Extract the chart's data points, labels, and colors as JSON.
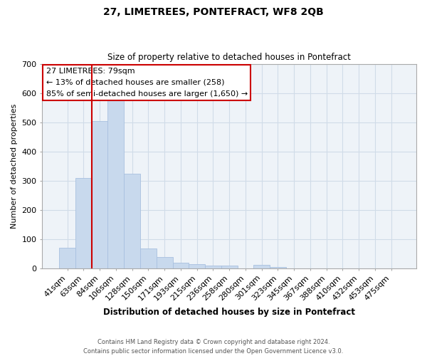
{
  "title": "27, LIMETREES, PONTEFRACT, WF8 2QB",
  "subtitle": "Size of property relative to detached houses in Pontefract",
  "xlabel": "Distribution of detached houses by size in Pontefract",
  "ylabel": "Number of detached properties",
  "bar_labels": [
    "41sqm",
    "63sqm",
    "84sqm",
    "106sqm",
    "128sqm",
    "150sqm",
    "171sqm",
    "193sqm",
    "215sqm",
    "236sqm",
    "258sqm",
    "280sqm",
    "301sqm",
    "323sqm",
    "345sqm",
    "367sqm",
    "388sqm",
    "410sqm",
    "432sqm",
    "453sqm",
    "475sqm"
  ],
  "bar_values": [
    72,
    310,
    505,
    575,
    325,
    68,
    40,
    20,
    14,
    10,
    10,
    0,
    12,
    6,
    0,
    0,
    0,
    0,
    0,
    0,
    0
  ],
  "bar_color": "#c8d9ed",
  "bar_edge_color": "#a8c0e0",
  "vline_color": "#cc0000",
  "ylim": [
    0,
    700
  ],
  "yticks": [
    0,
    100,
    200,
    300,
    400,
    500,
    600,
    700
  ],
  "annotation_title": "27 LIMETREES: 79sqm",
  "annotation_line1": "← 13% of detached houses are smaller (258)",
  "annotation_line2": "85% of semi-detached houses are larger (1,650) →",
  "box_edge_color": "#cc0000",
  "grid_color": "#d0dce8",
  "footer_line1": "Contains HM Land Registry data © Crown copyright and database right 2024.",
  "footer_line2": "Contains public sector information licensed under the Open Government Licence v3.0."
}
